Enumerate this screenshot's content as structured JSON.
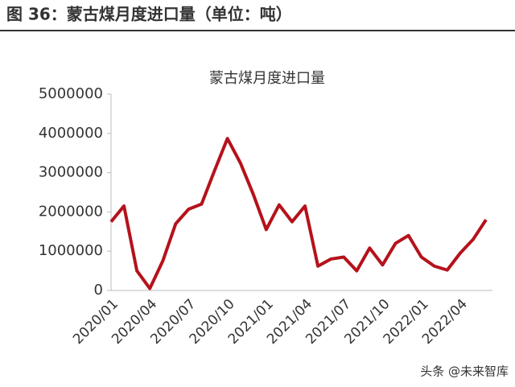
{
  "header": "图 36：蒙古煤月度进口量（单位：吨）",
  "watermark": "头条 @未来智库",
  "chart_data": {
    "type": "line",
    "title": "蒙古煤月度进口量",
    "categories": [
      "2020/01",
      null,
      null,
      "2020/04",
      null,
      null,
      "2020/07",
      null,
      null,
      "2020/10",
      null,
      null,
      "2021/01",
      null,
      null,
      "2021/04",
      null,
      null,
      "2021/07",
      null,
      null,
      "2021/10",
      null,
      null,
      "2022/01",
      null,
      null,
      "2022/04",
      null,
      null
    ],
    "series": [
      {
        "name": "蒙古煤月度进口量",
        "color": "#b5121b",
        "values": [
          1750000,
          2150000,
          500000,
          50000,
          750000,
          1700000,
          2070000,
          2200000,
          3050000,
          3870000,
          3250000,
          2450000,
          1550000,
          2180000,
          1750000,
          2150000,
          620000,
          800000,
          850000,
          500000,
          1080000,
          650000,
          1200000,
          1400000,
          850000,
          620000,
          520000,
          950000,
          1300000,
          1800000
        ]
      }
    ],
    "ylim": [
      0,
      5000000
    ],
    "yticks": [
      0,
      1000000,
      2000000,
      3000000,
      4000000,
      5000000
    ],
    "grid": false
  }
}
